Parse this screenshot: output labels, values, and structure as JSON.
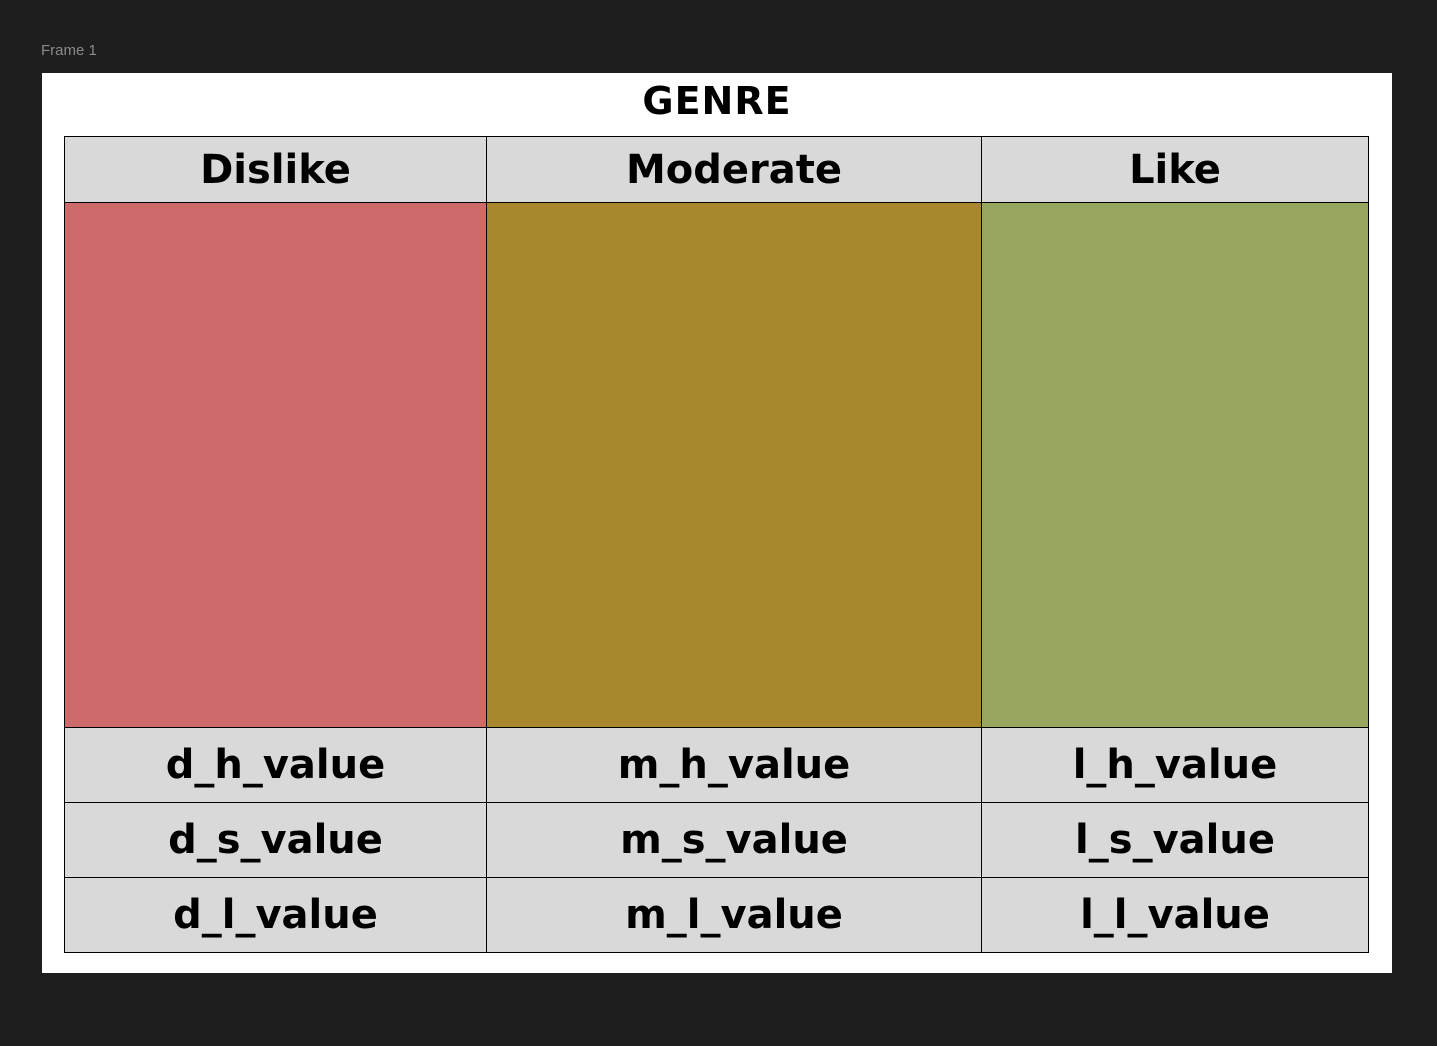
{
  "frame": {
    "label": "Frame 1"
  },
  "title": "GENRE",
  "columns": [
    {
      "header": "Dislike",
      "color": "#cd6a6a",
      "h_value": "d_h_value",
      "s_value": "d_s_value",
      "l_value": "d_l_value"
    },
    {
      "header": "Moderate",
      "color": "#a9872c",
      "h_value": "m_h_value",
      "s_value": "m_s_value",
      "l_value": "m_l_value"
    },
    {
      "header": "Like",
      "color": "#98a760",
      "h_value": "l_h_value",
      "s_value": "l_s_value",
      "l_value": "l_l_value"
    }
  ]
}
